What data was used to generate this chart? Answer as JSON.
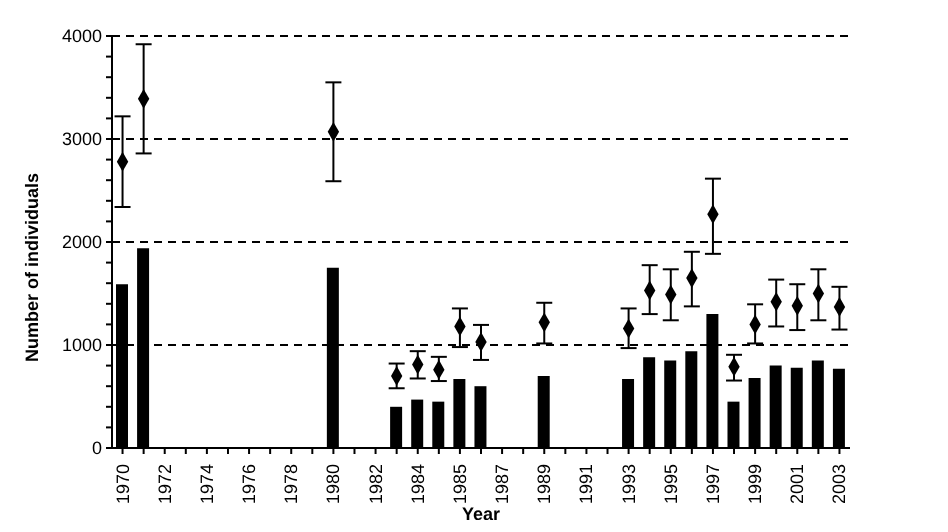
{
  "chart_data": {
    "type": "bar",
    "xlabel": "Year",
    "ylabel": "Number of individuals",
    "categories": [
      "1970",
      null,
      "1972",
      null,
      "1974",
      null,
      "1976",
      null,
      "1978",
      null,
      "1980",
      null,
      "1982",
      null,
      "1984",
      null,
      "1985",
      null,
      "1987",
      null,
      "1989",
      null,
      "1991",
      null,
      "1993",
      null,
      "1995",
      null,
      "1997",
      null,
      "1999",
      null,
      "2001",
      null,
      "2003"
    ],
    "series": [
      {
        "type": "bar",
        "color": "#000000",
        "values": [
          1590,
          1940,
          null,
          null,
          null,
          null,
          null,
          null,
          null,
          null,
          1750,
          null,
          null,
          400,
          470,
          450,
          670,
          600,
          null,
          null,
          700,
          null,
          null,
          null,
          670,
          880,
          850,
          940,
          1300,
          450,
          680,
          800,
          780,
          850,
          770
        ]
      },
      {
        "type": "scatter",
        "color": "#000000",
        "values": [
          2780,
          3390,
          null,
          null,
          null,
          null,
          null,
          null,
          null,
          null,
          3070,
          null,
          null,
          700,
          810,
          760,
          1180,
          1030,
          null,
          null,
          1220,
          null,
          null,
          null,
          1160,
          1530,
          1490,
          1650,
          2270,
          790,
          1200,
          1420,
          1380,
          1500,
          1370
        ],
        "errors": [
          [
            2340,
            3220
          ],
          [
            2860,
            3920
          ],
          null,
          null,
          null,
          null,
          null,
          null,
          null,
          null,
          [
            2590,
            3550
          ],
          null,
          null,
          [
            580,
            820
          ],
          [
            675,
            940
          ],
          [
            650,
            885
          ],
          [
            980,
            1355
          ],
          [
            855,
            1195
          ],
          null,
          null,
          [
            1015,
            1410
          ],
          null,
          null,
          null,
          [
            970,
            1355
          ],
          [
            1300,
            1775
          ],
          [
            1240,
            1735
          ],
          [
            1375,
            1905
          ],
          [
            1885,
            2615
          ],
          [
            655,
            905
          ],
          [
            1015,
            1395
          ],
          [
            1180,
            1635
          ],
          [
            1145,
            1590
          ],
          [
            1240,
            1735
          ],
          [
            1150,
            1565
          ]
        ]
      }
    ],
    "marker": "diamond",
    "ylim": [
      0,
      4000
    ],
    "yticks": [
      0,
      {
        "value": 200,
        "label": null
      },
      {
        "value": 400,
        "label": null
      },
      {
        "value": 600,
        "label": null
      },
      {
        "value": 800,
        "label": null
      },
      1000,
      {
        "value": 1200,
        "label": null
      },
      {
        "value": 1400,
        "label": null
      },
      {
        "value": 1600,
        "label": null
      },
      {
        "value": 1800,
        "label": null
      },
      2000,
      {
        "value": 2200,
        "label": null
      },
      {
        "value": 2400,
        "label": null
      },
      {
        "value": 2600,
        "label": null
      },
      {
        "value": 2800,
        "label": null
      },
      3000,
      {
        "value": 3200,
        "label": null
      },
      {
        "value": 3400,
        "label": null
      },
      {
        "value": 3600,
        "label": null
      },
      {
        "value": 3800,
        "label": null
      },
      4000
    ],
    "grid": "y"
  }
}
